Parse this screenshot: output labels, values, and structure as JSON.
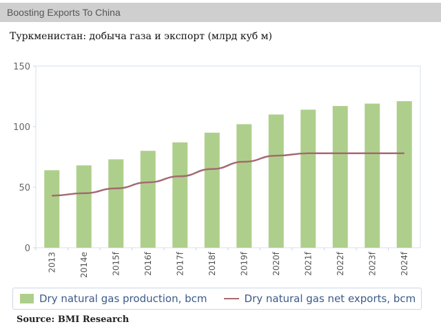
{
  "header": {
    "title": "Boosting Exports To China"
  },
  "subtitle": "Туркменистан: добыча газа и экспорт (млрд куб м)",
  "source": "Source: BMI Research",
  "chart_data": {
    "type": "bar",
    "categories": [
      "2013",
      "2014e",
      "2015f",
      "2016f",
      "2017f",
      "2018f",
      "2019f",
      "2020f",
      "2021f",
      "2022f",
      "2023f",
      "2024f"
    ],
    "series": [
      {
        "name": "Dry natural gas production, bcm",
        "type": "bar",
        "color": "#aecf8c",
        "values": [
          64,
          68,
          73,
          80,
          87,
          95,
          102,
          110,
          114,
          117,
          119,
          121
        ]
      },
      {
        "name": "Dry natural gas net exports, bcm",
        "type": "line",
        "color": "#a36a6f",
        "values": [
          43,
          45,
          49,
          54,
          59,
          65,
          71,
          76,
          78,
          78,
          78,
          78
        ]
      }
    ],
    "ylim": [
      0,
      150
    ],
    "yticks": [
      0,
      50,
      100,
      150
    ],
    "legend": "bottom",
    "grid": false
  }
}
